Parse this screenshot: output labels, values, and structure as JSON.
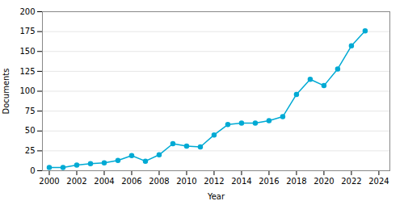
{
  "chart_data": {
    "type": "line",
    "x": [
      2000,
      2001,
      2002,
      2003,
      2004,
      2005,
      2006,
      2007,
      2008,
      2009,
      2010,
      2011,
      2012,
      2013,
      2014,
      2015,
      2016,
      2017,
      2018,
      2019,
      2020,
      2021,
      2022,
      2023
    ],
    "values": [
      4,
      4,
      7,
      9,
      10,
      13,
      19,
      12,
      20,
      34,
      31,
      30,
      45,
      58,
      60,
      60,
      63,
      68,
      96,
      115,
      107,
      128,
      157,
      176
    ],
    "color": "#00aad4",
    "marker": "circle",
    "xlabel": "Year",
    "ylabel": "Documents",
    "xlim": [
      1999.5,
      2024.8
    ],
    "ylim": [
      0,
      200
    ],
    "xticks": [
      2000,
      2002,
      2004,
      2006,
      2008,
      2010,
      2012,
      2014,
      2016,
      2018,
      2020,
      2022,
      2024
    ],
    "yticks": [
      0,
      25,
      50,
      75,
      100,
      125,
      150,
      175,
      200
    ],
    "grid": true
  }
}
